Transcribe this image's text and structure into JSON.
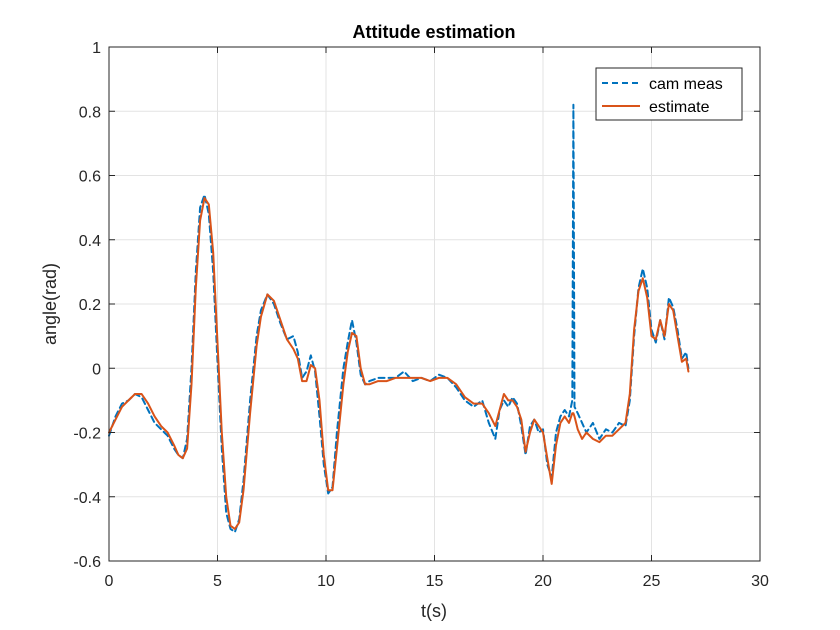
{
  "chart_data": {
    "type": "line",
    "title": "Attitude estimation",
    "xlabel": "t(s)",
    "ylabel": "angle(rad)",
    "xlim": [
      0,
      30
    ],
    "ylim": [
      -0.6,
      1
    ],
    "xticks": [
      0,
      5,
      10,
      15,
      20,
      25,
      30
    ],
    "yticks": [
      -0.6,
      -0.4,
      -0.2,
      0,
      0.2,
      0.4,
      0.6,
      0.8,
      1
    ],
    "xtick_labels": [
      "0",
      "5",
      "10",
      "15",
      "20",
      "25",
      "30"
    ],
    "ytick_labels": [
      "-0.6",
      "-0.4",
      "-0.2",
      "0",
      "0.2",
      "0.4",
      "0.6",
      "0.8",
      "1"
    ],
    "grid": true,
    "legend_position": "top-right",
    "series": [
      {
        "name": "cam meas",
        "color": "#0072BD",
        "style": "dashed",
        "x": [
          0,
          0.3,
          0.6,
          0.9,
          1.2,
          1.5,
          1.8,
          2.1,
          2.4,
          2.7,
          3.0,
          3.2,
          3.4,
          3.6,
          3.8,
          4.0,
          4.2,
          4.4,
          4.6,
          4.8,
          5.0,
          5.2,
          5.4,
          5.6,
          5.8,
          6.0,
          6.2,
          6.5,
          6.8,
          7.0,
          7.3,
          7.6,
          7.9,
          8.2,
          8.5,
          8.7,
          8.9,
          9.1,
          9.3,
          9.5,
          9.7,
          9.9,
          10.1,
          10.3,
          10.5,
          10.8,
          11.0,
          11.2,
          11.4,
          11.6,
          11.8,
          12.0,
          12.4,
          12.8,
          13.2,
          13.6,
          14.0,
          14.4,
          14.8,
          15.2,
          15.6,
          16.0,
          16.4,
          16.8,
          17.2,
          17.5,
          17.8,
          18.0,
          18.2,
          18.4,
          18.6,
          18.8,
          19.0,
          19.2,
          19.4,
          19.6,
          19.8,
          20.0,
          20.2,
          20.4,
          20.6,
          20.8,
          21.0,
          21.2,
          21.35,
          21.4,
          21.45,
          21.6,
          21.8,
          22.0,
          22.3,
          22.6,
          22.9,
          23.2,
          23.5,
          23.8,
          24.0,
          24.2,
          24.4,
          24.6,
          24.8,
          25.0,
          25.2,
          25.4,
          25.6,
          25.8,
          26.0,
          26.2,
          26.4,
          26.6,
          26.7
        ],
        "y": [
          -0.21,
          -0.15,
          -0.11,
          -0.1,
          -0.08,
          -0.09,
          -0.13,
          -0.17,
          -0.19,
          -0.21,
          -0.25,
          -0.27,
          -0.28,
          -0.22,
          0.0,
          0.3,
          0.5,
          0.54,
          0.48,
          0.3,
          0.02,
          -0.25,
          -0.45,
          -0.5,
          -0.51,
          -0.47,
          -0.35,
          -0.1,
          0.1,
          0.18,
          0.23,
          0.2,
          0.14,
          0.09,
          0.1,
          0.05,
          -0.03,
          -0.01,
          0.04,
          -0.01,
          -0.15,
          -0.3,
          -0.39,
          -0.37,
          -0.2,
          0.0,
          0.08,
          0.15,
          0.08,
          -0.02,
          -0.05,
          -0.04,
          -0.03,
          -0.03,
          -0.03,
          -0.01,
          -0.04,
          -0.03,
          -0.04,
          -0.02,
          -0.03,
          -0.06,
          -0.1,
          -0.12,
          -0.1,
          -0.17,
          -0.22,
          -0.13,
          -0.1,
          -0.12,
          -0.09,
          -0.11,
          -0.18,
          -0.27,
          -0.18,
          -0.16,
          -0.2,
          -0.19,
          -0.3,
          -0.34,
          -0.2,
          -0.15,
          -0.13,
          -0.15,
          -0.1,
          0.82,
          -0.12,
          -0.14,
          -0.17,
          -0.2,
          -0.17,
          -0.22,
          -0.19,
          -0.2,
          -0.17,
          -0.18,
          -0.1,
          0.1,
          0.25,
          0.31,
          0.25,
          0.12,
          0.08,
          0.15,
          0.09,
          0.22,
          0.19,
          0.12,
          0.03,
          0.05,
          0.0
        ]
      },
      {
        "name": "estimate",
        "color": "#D95319",
        "style": "solid",
        "x": [
          0,
          0.3,
          0.6,
          0.9,
          1.2,
          1.5,
          1.8,
          2.1,
          2.4,
          2.7,
          3.0,
          3.2,
          3.4,
          3.6,
          3.8,
          4.0,
          4.2,
          4.4,
          4.6,
          4.8,
          5.0,
          5.2,
          5.4,
          5.6,
          5.8,
          6.0,
          6.2,
          6.5,
          6.8,
          7.0,
          7.3,
          7.6,
          7.9,
          8.2,
          8.5,
          8.7,
          8.9,
          9.1,
          9.3,
          9.5,
          9.7,
          9.9,
          10.1,
          10.3,
          10.5,
          10.8,
          11.0,
          11.2,
          11.4,
          11.6,
          11.8,
          12.0,
          12.4,
          12.8,
          13.2,
          13.6,
          14.0,
          14.4,
          14.8,
          15.2,
          15.6,
          16.0,
          16.4,
          16.8,
          17.2,
          17.5,
          17.8,
          18.0,
          18.2,
          18.4,
          18.6,
          18.8,
          19.0,
          19.2,
          19.4,
          19.6,
          19.8,
          20.0,
          20.2,
          20.4,
          20.6,
          20.8,
          21.0,
          21.2,
          21.35,
          21.4,
          21.45,
          21.6,
          21.8,
          22.0,
          22.3,
          22.6,
          22.9,
          23.2,
          23.5,
          23.8,
          24.0,
          24.2,
          24.4,
          24.6,
          24.8,
          25.0,
          25.2,
          25.4,
          25.6,
          25.8,
          26.0,
          26.2,
          26.4,
          26.6,
          26.7
        ],
        "y": [
          -0.2,
          -0.16,
          -0.12,
          -0.1,
          -0.08,
          -0.08,
          -0.11,
          -0.15,
          -0.18,
          -0.2,
          -0.24,
          -0.27,
          -0.28,
          -0.25,
          -0.05,
          0.25,
          0.46,
          0.53,
          0.51,
          0.36,
          0.08,
          -0.2,
          -0.4,
          -0.49,
          -0.5,
          -0.48,
          -0.38,
          -0.14,
          0.07,
          0.16,
          0.23,
          0.21,
          0.15,
          0.09,
          0.06,
          0.03,
          -0.04,
          -0.04,
          0.01,
          0.0,
          -0.1,
          -0.27,
          -0.38,
          -0.38,
          -0.25,
          -0.05,
          0.05,
          0.11,
          0.1,
          0.0,
          -0.05,
          -0.05,
          -0.04,
          -0.04,
          -0.03,
          -0.03,
          -0.03,
          -0.03,
          -0.04,
          -0.03,
          -0.03,
          -0.05,
          -0.09,
          -0.11,
          -0.11,
          -0.14,
          -0.18,
          -0.13,
          -0.08,
          -0.1,
          -0.1,
          -0.12,
          -0.16,
          -0.26,
          -0.2,
          -0.16,
          -0.18,
          -0.2,
          -0.28,
          -0.36,
          -0.24,
          -0.17,
          -0.15,
          -0.17,
          -0.14,
          -0.14,
          -0.15,
          -0.19,
          -0.22,
          -0.2,
          -0.22,
          -0.23,
          -0.21,
          -0.21,
          -0.19,
          -0.17,
          -0.08,
          0.12,
          0.24,
          0.28,
          0.22,
          0.1,
          0.09,
          0.15,
          0.1,
          0.2,
          0.18,
          0.1,
          0.02,
          0.03,
          -0.01
        ]
      }
    ]
  }
}
